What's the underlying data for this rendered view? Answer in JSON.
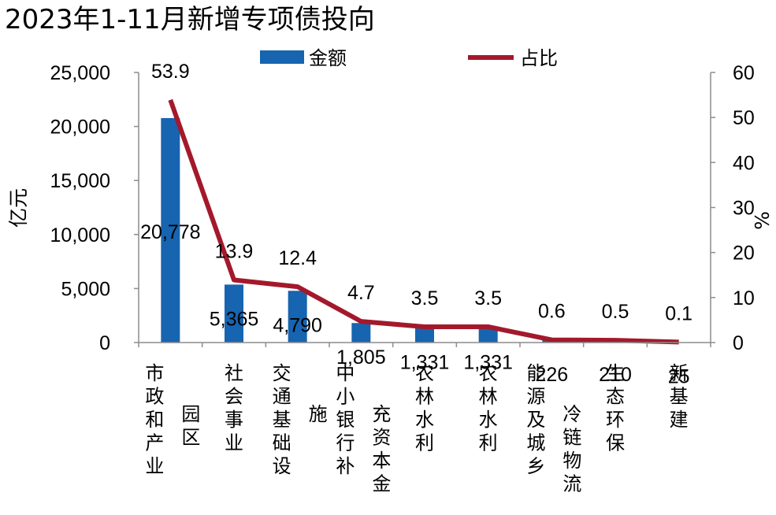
{
  "chart_data": {
    "type": "bar+line",
    "title": "2023年1-11月新增专项债投向",
    "categories": [
      [
        "市政和产业",
        "园区"
      ],
      [
        "社会事业"
      ],
      [
        "交通基础设",
        "施"
      ],
      [
        "中小银行补",
        "充资本金"
      ],
      [
        "农林水利"
      ],
      [
        "农林水利"
      ],
      [
        "能源及城乡",
        "冷链物流"
      ],
      [
        "生态环保"
      ],
      [
        "新基建"
      ]
    ],
    "series": [
      {
        "name": "金额",
        "kind": "bar",
        "axis": "left",
        "color": "#1764b0",
        "values": [
          20778,
          5365,
          4790,
          1805,
          1331,
          1331,
          226,
          210,
          25
        ],
        "labels": [
          "20,778",
          "5,365",
          "4,790",
          "1,805",
          "1,331",
          "1,331",
          "226",
          "210",
          "25"
        ]
      },
      {
        "name": "占比",
        "kind": "line",
        "axis": "right",
        "color": "#a3192b",
        "values": [
          53.9,
          13.9,
          12.4,
          4.7,
          3.5,
          3.5,
          0.6,
          0.5,
          0.1
        ],
        "labels": [
          "53.9",
          "13.9",
          "12.4",
          "4.7",
          "3.5",
          "3.5",
          "0.6",
          "0.5",
          "0.1"
        ]
      }
    ],
    "y_left": {
      "label": "亿元",
      "min": 0,
      "max": 25000,
      "ticks": [
        "0",
        "5,000",
        "10,000",
        "15,000",
        "20,000",
        "25,000"
      ]
    },
    "y_right": {
      "label": "%",
      "min": 0,
      "max": 60,
      "ticks": [
        "0",
        "10",
        "20",
        "30",
        "40",
        "50",
        "60"
      ]
    },
    "legend": "top",
    "grid": false
  }
}
